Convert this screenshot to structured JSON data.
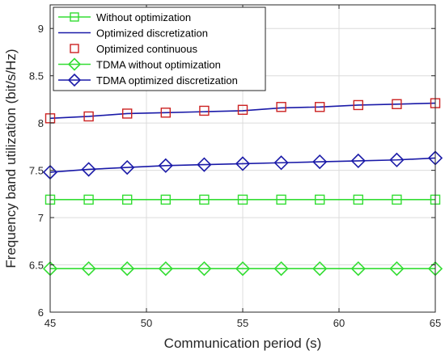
{
  "chart_data": {
    "type": "line",
    "title": "",
    "xlabel": "Communication period (s)",
    "ylabel": "Frequency band utilization (bit/s/Hz)",
    "xlim": [
      45,
      65
    ],
    "ylim": [
      6,
      9.25
    ],
    "xticks": [
      45,
      50,
      55,
      60,
      65
    ],
    "yticks": [
      6,
      6.5,
      7,
      7.5,
      8,
      8.5,
      9
    ],
    "grid": true,
    "legend_position": "top-left",
    "x": [
      45,
      47,
      49,
      51,
      53,
      55,
      57,
      59,
      61,
      63,
      65
    ],
    "series": [
      {
        "name": "Without optimization",
        "color": "#33dd33",
        "line": true,
        "marker": "square",
        "values": [
          7.19,
          7.19,
          7.19,
          7.19,
          7.19,
          7.19,
          7.19,
          7.19,
          7.19,
          7.19,
          7.19
        ]
      },
      {
        "name": "Optimized discretization",
        "color": "#1a1aa8",
        "line": true,
        "marker": "none",
        "values": [
          8.05,
          8.07,
          8.1,
          8.11,
          8.12,
          8.13,
          8.16,
          8.17,
          8.19,
          8.2,
          8.21
        ]
      },
      {
        "name": "Optimized continuous",
        "color": "#cc2222",
        "line": false,
        "marker": "square",
        "values": [
          8.05,
          8.07,
          8.1,
          8.11,
          8.13,
          8.14,
          8.17,
          8.17,
          8.19,
          8.2,
          8.21
        ]
      },
      {
        "name": "TDMA without optimization",
        "color": "#33dd33",
        "line": true,
        "marker": "diamond",
        "values": [
          6.46,
          6.46,
          6.46,
          6.46,
          6.46,
          6.46,
          6.46,
          6.46,
          6.46,
          6.46,
          6.46
        ]
      },
      {
        "name": "TDMA optimized discretization",
        "color": "#1a1aa8",
        "line": true,
        "marker": "diamond",
        "values": [
          7.48,
          7.51,
          7.53,
          7.55,
          7.56,
          7.57,
          7.58,
          7.59,
          7.6,
          7.61,
          7.63
        ]
      }
    ]
  }
}
